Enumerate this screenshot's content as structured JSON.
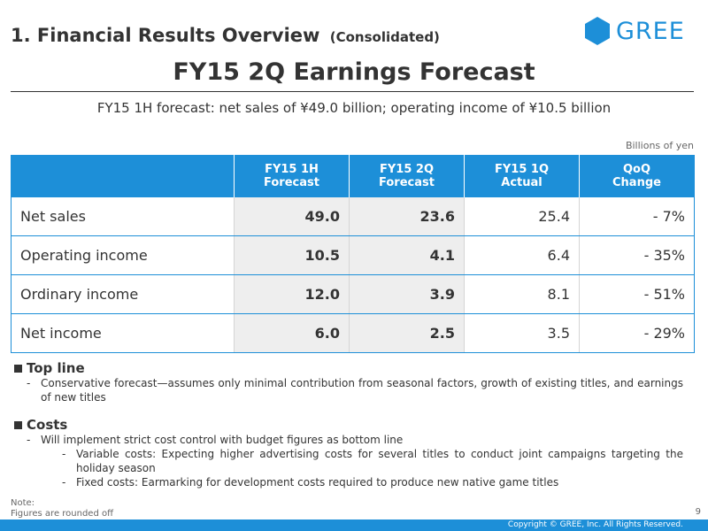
{
  "header": {
    "section_title": "1. Financial Results Overview",
    "section_sub": "(Consolidated)",
    "logo_text": "GREE"
  },
  "title": "FY15 2Q Earnings Forecast",
  "subtitle": "FY15 1H forecast: net sales of ¥49.0 billion; operating income of ¥10.5 billion",
  "unit": "Billions of yen",
  "table": {
    "headers": [
      [
        "FY15 1H",
        "Forecast"
      ],
      [
        "FY15 2Q",
        "Forecast"
      ],
      [
        "FY15 1Q",
        "Actual"
      ],
      [
        "QoQ",
        "Change"
      ]
    ],
    "rows": [
      [
        "Net sales",
        "49.0",
        "23.6",
        "25.4",
        "- 7%"
      ],
      [
        "Operating income",
        "10.5",
        "4.1",
        "6.4",
        "- 35%"
      ],
      [
        "Ordinary income",
        "12.0",
        "3.9",
        "8.1",
        "- 51%"
      ],
      [
        "Net income",
        "6.0",
        "2.5",
        "3.5",
        "- 29%"
      ]
    ]
  },
  "topline": {
    "heading": "Top line",
    "items": [
      "Conservative forecast—assumes only minimal contribution from seasonal factors, growth of existing titles, and earnings of new titles"
    ]
  },
  "costs": {
    "heading": "Costs",
    "item": "Will implement strict cost control with budget figures as bottom line",
    "subitems": [
      "Variable costs: Expecting higher advertising costs for several titles to conduct joint campaigns targeting the holiday season",
      "Fixed costs: Earmarking for development costs required to produce new native game titles"
    ]
  },
  "note": {
    "label": "Note:",
    "text": "Figures are rounded off"
  },
  "page_number": "9",
  "copyright": "Copyright © GREE, Inc. All Rights Reserved.",
  "colors": {
    "accent": "#1d8fd8",
    "forecast_bg": "#eeeeee",
    "text": "#333333"
  }
}
